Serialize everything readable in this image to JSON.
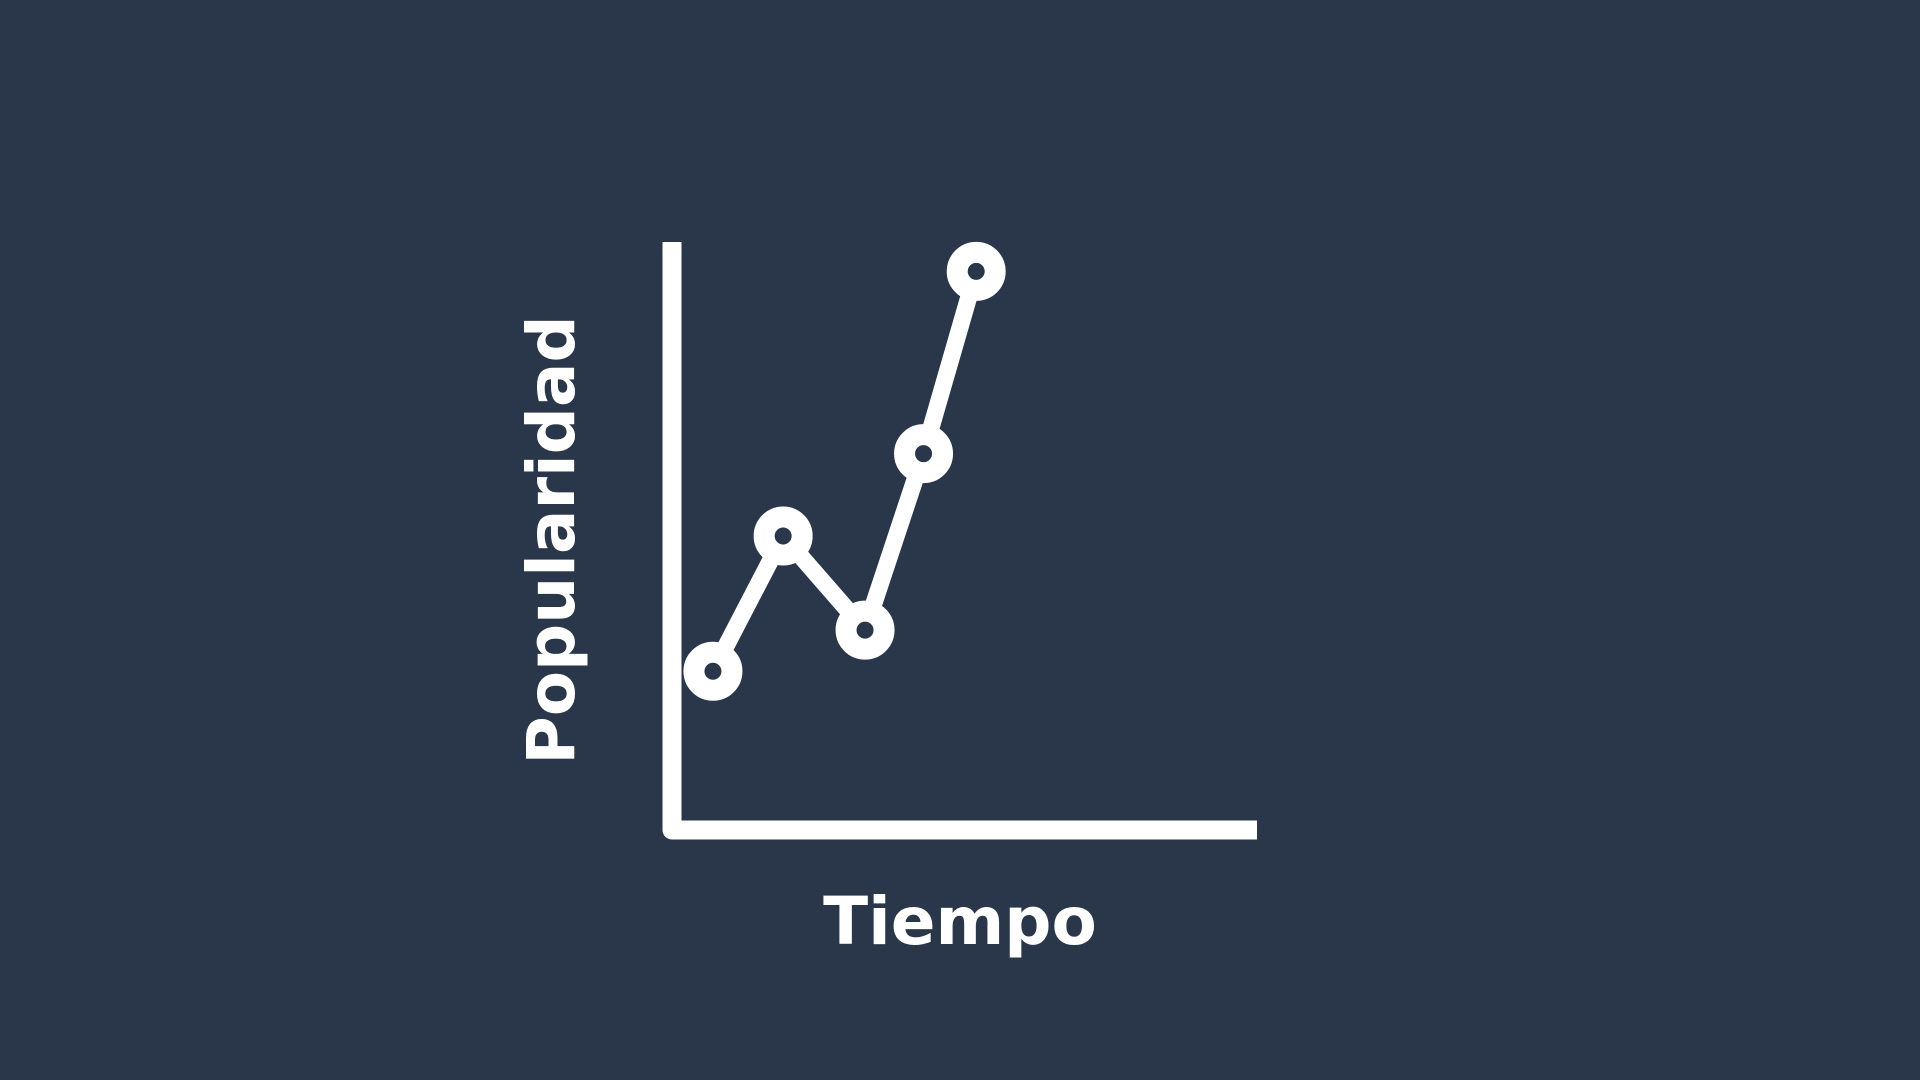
{
  "colors": {
    "background": "#2a3649",
    "foreground": "#ffffff"
  },
  "chart_data": {
    "type": "line",
    "xlabel": "Tiempo",
    "ylabel": "Popularidad",
    "grid": false,
    "legend": "none",
    "xlim": [
      0,
      10
    ],
    "ylim": [
      0,
      10
    ],
    "series": [
      {
        "x": [
          0.7,
          1.9,
          3.3,
          4.3,
          5.2
        ],
        "values": [
          2.7,
          5.0,
          3.4,
          6.4,
          9.5
        ],
        "marker": "ring"
      }
    ]
  }
}
